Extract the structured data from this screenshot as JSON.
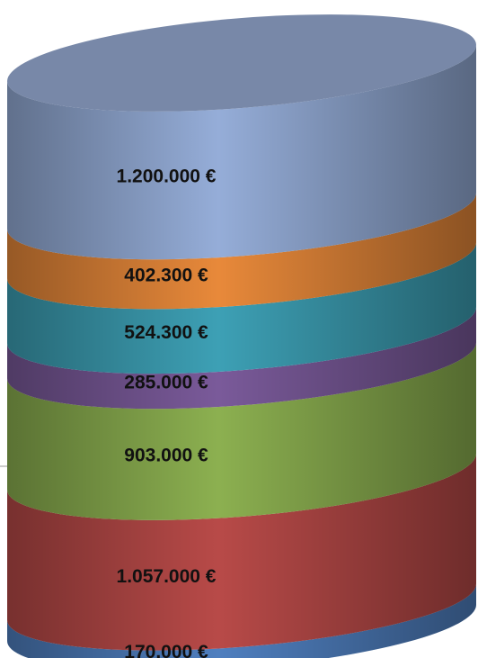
{
  "chart_data": {
    "type": "bar",
    "stacked": true,
    "categories": [
      null
    ],
    "series": [
      {
        "color": "#4f7fbf",
        "values": [
          170000
        ],
        "value_labels": [
          "170.000 €"
        ]
      },
      {
        "color": "#b84a48",
        "values": [
          1057000
        ],
        "value_labels": [
          "1.057.000 €"
        ]
      },
      {
        "color": "#8cb050",
        "values": [
          903000
        ],
        "value_labels": [
          "903.000 €"
        ]
      },
      {
        "color": "#7a5a9a",
        "values": [
          285000
        ],
        "value_labels": [
          "285.000 €"
        ]
      },
      {
        "color": "#3da0b5",
        "values": [
          524300
        ],
        "value_labels": [
          "524.300 €"
        ]
      },
      {
        "color": "#e8893a",
        "values": [
          402300
        ],
        "value_labels": [
          "402.300 €"
        ]
      },
      {
        "color": "#95add8",
        "values": [
          1200000
        ],
        "value_labels": [
          "1.200.000 €"
        ]
      }
    ]
  }
}
